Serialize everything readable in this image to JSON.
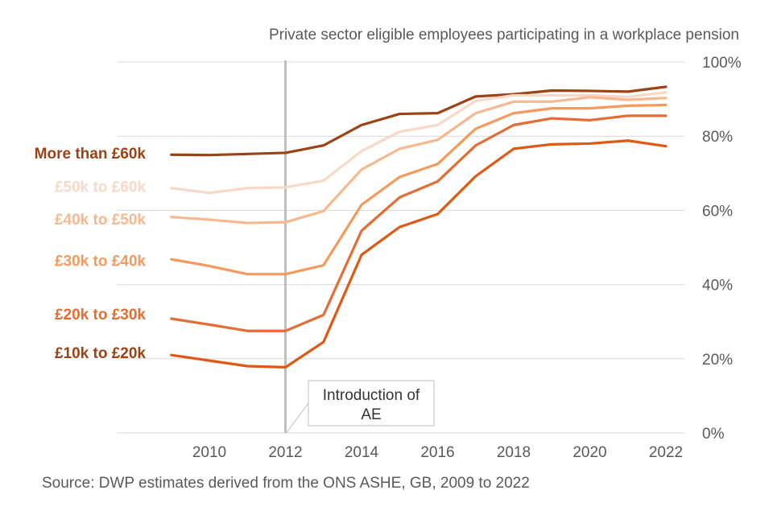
{
  "chart_data": {
    "type": "line",
    "title": "Private sector eligible employees participating in a workplace pension",
    "x": [
      2009,
      2010,
      2011,
      2012,
      2013,
      2014,
      2015,
      2016,
      2017,
      2018,
      2019,
      2020,
      2021,
      2022
    ],
    "xticks": [
      2010,
      2012,
      2014,
      2016,
      2018,
      2020,
      2022
    ],
    "xlim": [
      2008,
      2022.5
    ],
    "ylim": [
      0,
      100
    ],
    "yticks": [
      0,
      20,
      40,
      60,
      80,
      100
    ],
    "ytick_labels": [
      "0%",
      "20%",
      "40%",
      "60%",
      "80%",
      "100%"
    ],
    "series": [
      {
        "name": "More than £60k",
        "color": "#9c4214",
        "values": [
          75,
          74.9,
          75.2,
          75.5,
          77.5,
          83,
          86,
          86.2,
          90.7,
          91.3,
          92.3,
          92.2,
          92,
          93.3
        ]
      },
      {
        "name": "£50k to £60k",
        "color": "#f8d8c6",
        "values": [
          66,
          64.7,
          66,
          66.2,
          68,
          76,
          81.2,
          83,
          89.5,
          91,
          91,
          91,
          90.6,
          91.8
        ]
      },
      {
        "name": "£40k to £50k",
        "color": "#f6b88e",
        "values": [
          58.2,
          57.5,
          56.6,
          56.8,
          59.8,
          71,
          76.6,
          79,
          86.2,
          89.3,
          89.3,
          90.5,
          89.8,
          90.3
        ]
      },
      {
        "name": "£30k to £40k",
        "color": "#f59a5c",
        "values": [
          46.8,
          45,
          42.8,
          42.8,
          45.2,
          61.5,
          69,
          72.5,
          82,
          86.2,
          87.5,
          87.5,
          88.2,
          88.4
        ]
      },
      {
        "name": "£20k to £30k",
        "color": "#e46d35",
        "values": [
          30.8,
          29.2,
          27.5,
          27.5,
          31.8,
          54.5,
          63.5,
          67.8,
          77.5,
          83,
          84.8,
          84.3,
          85.5,
          85.5
        ]
      },
      {
        "name": "£10k to £20k",
        "color": "#df5912",
        "values": [
          21,
          19.5,
          18,
          17.7,
          24.5,
          48,
          55.5,
          59,
          69.2,
          76.6,
          77.8,
          78,
          78.8,
          77.3
        ]
      }
    ],
    "label_colors": [
      "#9c4214",
      "#f8d8c6",
      "#f6b88e",
      "#f59a5c",
      "#e46d35",
      "#9c4214"
    ],
    "label_y_values": [
      75.5,
      66.5,
      57.7,
      46.5,
      32.1,
      21.7
    ],
    "annotation": {
      "lines": [
        "Introduction of",
        "AE"
      ],
      "x": 2012
    }
  },
  "source": "Source: DWP estimates derived from the ONS ASHE, GB, 2009 to 2022"
}
